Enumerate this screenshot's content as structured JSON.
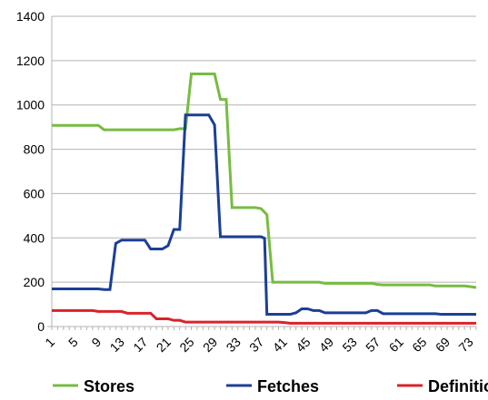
{
  "chart_data": {
    "type": "line",
    "ylim": [
      0,
      1400
    ],
    "yticks": [
      0,
      200,
      400,
      600,
      800,
      1000,
      1200,
      1400
    ],
    "xlim": [
      1,
      74
    ],
    "xtick_labels": [
      "1",
      "5",
      "9",
      "13",
      "17",
      "21",
      "25",
      "29",
      "33",
      "37",
      "41",
      "45",
      "49",
      "53",
      "57",
      "61",
      "65",
      "69",
      "73"
    ],
    "grid": true,
    "legend_position": "bottom",
    "series": [
      {
        "name": "Stores",
        "color": "#77bc41",
        "points": [
          [
            1,
            908
          ],
          [
            9,
            908
          ],
          [
            10,
            888
          ],
          [
            22,
            888
          ],
          [
            23,
            893
          ],
          [
            24,
            893
          ],
          [
            25,
            1140
          ],
          [
            29,
            1140
          ],
          [
            30,
            1025
          ],
          [
            31,
            1025
          ],
          [
            32,
            537
          ],
          [
            36,
            537
          ],
          [
            37,
            532
          ],
          [
            38,
            505
          ],
          [
            39,
            200
          ],
          [
            47,
            200
          ],
          [
            48,
            195
          ],
          [
            55,
            195
          ],
          [
            56,
            195
          ],
          [
            57,
            190
          ],
          [
            58,
            188
          ],
          [
            66,
            188
          ],
          [
            67,
            183
          ],
          [
            72,
            183
          ],
          [
            73,
            180
          ],
          [
            74,
            176
          ]
        ]
      },
      {
        "name": "Fetches",
        "color": "#1b3f96",
        "points": [
          [
            1,
            170
          ],
          [
            9,
            170
          ],
          [
            10,
            167
          ],
          [
            11,
            167
          ],
          [
            12,
            375
          ],
          [
            13,
            390
          ],
          [
            17,
            390
          ],
          [
            18,
            350
          ],
          [
            20,
            350
          ],
          [
            21,
            365
          ],
          [
            22,
            438
          ],
          [
            23,
            438
          ],
          [
            24,
            955
          ],
          [
            28,
            955
          ],
          [
            29,
            910
          ],
          [
            30,
            405
          ],
          [
            37,
            405
          ],
          [
            37.6,
            398
          ],
          [
            38,
            55
          ],
          [
            42,
            55
          ],
          [
            43,
            62
          ],
          [
            44,
            80
          ],
          [
            45,
            80
          ],
          [
            46,
            72
          ],
          [
            47,
            72
          ],
          [
            48,
            62
          ],
          [
            54,
            62
          ],
          [
            55,
            62
          ],
          [
            56,
            72
          ],
          [
            57,
            72
          ],
          [
            58,
            58
          ],
          [
            67,
            58
          ],
          [
            68,
            55
          ],
          [
            74,
            55
          ]
        ]
      },
      {
        "name": "Definitions",
        "color": "#d9232a",
        "points": [
          [
            1,
            72
          ],
          [
            8,
            72
          ],
          [
            9,
            68
          ],
          [
            13,
            68
          ],
          [
            14,
            60
          ],
          [
            18,
            60
          ],
          [
            19,
            35
          ],
          [
            21,
            35
          ],
          [
            22,
            28
          ],
          [
            23,
            28
          ],
          [
            24,
            20
          ],
          [
            40,
            20
          ],
          [
            41,
            18
          ],
          [
            42,
            15
          ],
          [
            74,
            15
          ]
        ]
      }
    ]
  }
}
